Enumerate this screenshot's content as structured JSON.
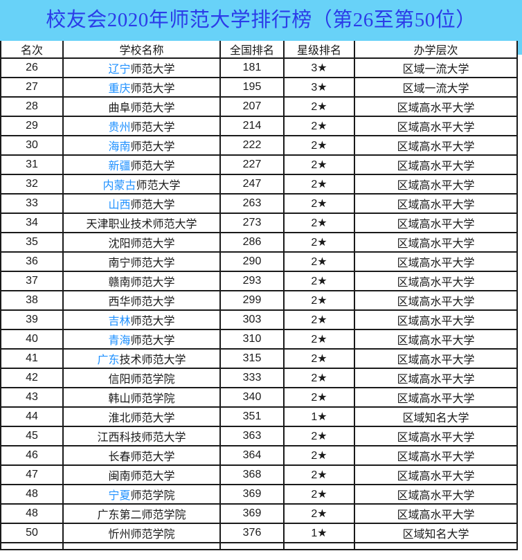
{
  "title": "校友会2020年师范大学排行榜（第26至第50位）",
  "colors": {
    "banner_bg": "#68d2f8",
    "title_text": "#2b3ce8",
    "highlight_blue": "#1e90ff",
    "text": "#1a1a1a",
    "border": "#1a1a1a"
  },
  "table": {
    "headers": [
      "名次",
      "学校名称",
      "全国排名",
      "星级排名",
      "办学层次"
    ],
    "rows": [
      {
        "rank": "26",
        "name_blue": "辽宁",
        "name_rest": "师范大学",
        "national": "181",
        "star": "3★",
        "level": "区域一流大学"
      },
      {
        "rank": "27",
        "name_blue": "重庆",
        "name_rest": "师范大学",
        "national": "195",
        "star": "3★",
        "level": "区域一流大学"
      },
      {
        "rank": "28",
        "name_blue": "",
        "name_rest": "曲阜师范大学",
        "national": "207",
        "star": "2★",
        "level": "区域高水平大学"
      },
      {
        "rank": "29",
        "name_blue": "贵州",
        "name_rest": "师范大学",
        "national": "214",
        "star": "2★",
        "level": "区域高水平大学"
      },
      {
        "rank": "30",
        "name_blue": "海南",
        "name_rest": "师范大学",
        "national": "222",
        "star": "2★",
        "level": "区域高水平大学"
      },
      {
        "rank": "31",
        "name_blue": "新疆",
        "name_rest": "师范大学",
        "national": "227",
        "star": "2★",
        "level": "区域高水平大学"
      },
      {
        "rank": "32",
        "name_blue": "内蒙古",
        "name_rest": "师范大学",
        "national": "247",
        "star": "2★",
        "level": "区域高水平大学"
      },
      {
        "rank": "33",
        "name_blue": "山西",
        "name_rest": "师范大学",
        "national": "263",
        "star": "2★",
        "level": "区域高水平大学"
      },
      {
        "rank": "34",
        "name_blue": "",
        "name_rest": "天津职业技术师范大学",
        "national": "273",
        "star": "2★",
        "level": "区域高水平大学"
      },
      {
        "rank": "35",
        "name_blue": "",
        "name_rest": "沈阳师范大学",
        "national": "286",
        "star": "2★",
        "level": "区域高水平大学"
      },
      {
        "rank": "36",
        "name_blue": "",
        "name_rest": "南宁师范大学",
        "national": "290",
        "star": "2★",
        "level": "区域高水平大学"
      },
      {
        "rank": "37",
        "name_blue": "",
        "name_rest": "赣南师范大学",
        "national": "293",
        "star": "2★",
        "level": "区域高水平大学"
      },
      {
        "rank": "38",
        "name_blue": "",
        "name_rest": "西华师范大学",
        "national": "299",
        "star": "2★",
        "level": "区域高水平大学"
      },
      {
        "rank": "39",
        "name_blue": "吉林",
        "name_rest": "师范大学",
        "national": "303",
        "star": "2★",
        "level": "区域高水平大学"
      },
      {
        "rank": "40",
        "name_blue": "青海",
        "name_rest": "师范大学",
        "national": "310",
        "star": "2★",
        "level": "区域高水平大学"
      },
      {
        "rank": "41",
        "name_blue": "广东",
        "name_rest": "技术师范大学",
        "national": "315",
        "star": "2★",
        "level": "区域高水平大学"
      },
      {
        "rank": "42",
        "name_blue": "",
        "name_rest": "信阳师范学院",
        "national": "333",
        "star": "2★",
        "level": "区域高水平大学"
      },
      {
        "rank": "43",
        "name_blue": "",
        "name_rest": "韩山师范学院",
        "national": "340",
        "star": "2★",
        "level": "区域高水平大学"
      },
      {
        "rank": "44",
        "name_blue": "",
        "name_rest": "淮北师范大学",
        "national": "351",
        "star": "1★",
        "level": "区域知名大学"
      },
      {
        "rank": "45",
        "name_blue": "",
        "name_rest": "江西科技师范大学",
        "national": "363",
        "star": "2★",
        "level": "区域高水平大学"
      },
      {
        "rank": "46",
        "name_blue": "",
        "name_rest": "长春师范大学",
        "national": "364",
        "star": "2★",
        "level": "区域高水平大学"
      },
      {
        "rank": "47",
        "name_blue": "",
        "name_rest": "闽南师范大学",
        "national": "368",
        "star": "2★",
        "level": "区域高水平大学"
      },
      {
        "rank": "48",
        "name_blue": "宁夏",
        "name_rest": "师范学院",
        "national": "369",
        "star": "2★",
        "level": "区域高水平大学"
      },
      {
        "rank": "48",
        "name_blue": "",
        "name_rest": "广东第二师范学院",
        "national": "369",
        "star": "2★",
        "level": "区域高水平大学"
      },
      {
        "rank": "50",
        "name_blue": "",
        "name_rest": "忻州师范学院",
        "national": "376",
        "star": "1★",
        "level": "区域知名大学"
      }
    ]
  }
}
